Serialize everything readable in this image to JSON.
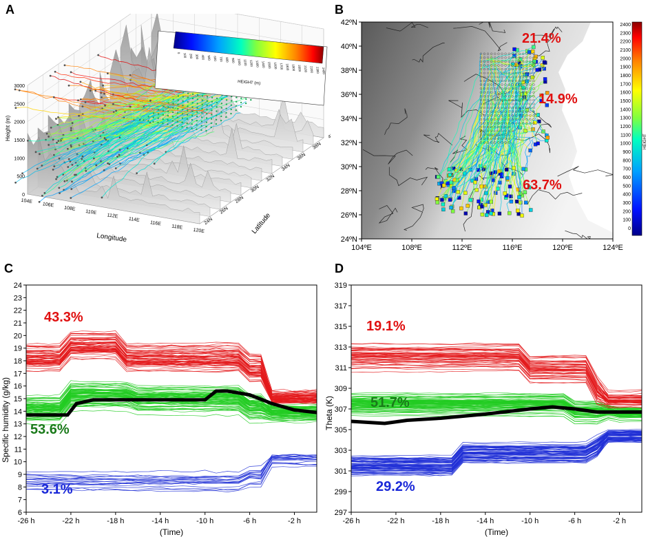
{
  "panels": {
    "a": "A",
    "b": "B",
    "c": "C",
    "d": "D"
  },
  "chart_data": [
    {
      "id": "A",
      "type": "3d-trajectory",
      "xlabel": "Longitude",
      "ylabel": "Latitude",
      "zlabel": "Height (m)",
      "x_ticks": [
        "104E",
        "106E",
        "108E",
        "110E",
        "112E",
        "114E",
        "116E",
        "118E",
        "120E"
      ],
      "y_ticks": [
        "24N",
        "26N",
        "28N",
        "30N",
        "32N",
        "34N",
        "36N",
        "38N",
        "40N"
      ],
      "z_ticks": [
        "0",
        "500",
        "1000",
        "1500",
        "2000",
        "2500",
        "3000"
      ],
      "colorbar_title": "HEIGHT (m)",
      "colorbar_ticks": [
        "0",
        "100",
        "200",
        "300",
        "400",
        "500",
        "600",
        "700",
        "800",
        "900",
        "1000",
        "1100",
        "1200",
        "1300",
        "1400",
        "1500",
        "1600",
        "1700",
        "1800",
        "1900",
        "2000",
        "2100",
        "2200",
        "2300",
        "2400"
      ]
    },
    {
      "id": "B",
      "type": "map-trajectory",
      "x_ticks": [
        "104ºE",
        "108ºE",
        "112ºE",
        "116ºE",
        "120ºE",
        "124ºE"
      ],
      "y_ticks": [
        "24ºN",
        "26ºN",
        "28ºN",
        "30ºN",
        "32ºN",
        "34ºN",
        "36ºN",
        "38ºN",
        "40ºN",
        "42ºN"
      ],
      "colorbar_title": "HEIGHT",
      "colorbar_ticks": [
        "0",
        "100",
        "200",
        "300",
        "400",
        "500",
        "600",
        "700",
        "800",
        "900",
        "1000",
        "1100",
        "1200",
        "1300",
        "1400",
        "1500",
        "1600",
        "1700",
        "1800",
        "1900",
        "2000",
        "2100",
        "2200",
        "2300",
        "2400"
      ],
      "annotations": [
        "21.4%",
        "14.9%",
        "63.7%"
      ]
    },
    {
      "id": "C",
      "type": "line",
      "ylabel": "Specific humidity (g/kg)",
      "xlabel": "(Time)",
      "x_ticks": [
        "-26 h",
        "-22 h",
        "-18 h",
        "-14 h",
        "-10 h",
        "-6 h",
        "-2 h"
      ],
      "x_tick_values": [
        -26,
        -22,
        -18,
        -14,
        -10,
        -6,
        -2
      ],
      "xlim": [
        -26,
        0
      ],
      "ylim": [
        6,
        24
      ],
      "y_ticks": [
        "6",
        "7",
        "8",
        "9",
        "10",
        "11",
        "12",
        "13",
        "14",
        "15",
        "16",
        "17",
        "18",
        "19",
        "20",
        "21",
        "22",
        "23",
        "24"
      ],
      "mean_line": {
        "x": [
          -26,
          -22.3,
          -21.5,
          -20,
          -10,
          -9,
          -8,
          -6,
          -4,
          -2,
          0
        ],
        "y": [
          13.7,
          13.7,
          14.6,
          14.9,
          14.9,
          15.6,
          15.6,
          15.3,
          14.6,
          14.1,
          13.9
        ]
      },
      "annotations": [
        "43.3%",
        "53.6%",
        "3.1%"
      ]
    },
    {
      "id": "D",
      "type": "line",
      "ylabel": "Theta (K)",
      "xlabel": "(Time)",
      "x_ticks": [
        "-26 h",
        "-22 h",
        "-18 h",
        "-14 h",
        "-10 h",
        "-6 h",
        "-2 h"
      ],
      "x_tick_values": [
        -26,
        -22,
        -18,
        -14,
        -10,
        -6,
        -2
      ],
      "xlim": [
        -26,
        0
      ],
      "ylim": [
        297,
        319
      ],
      "y_ticks": [
        "297",
        "299",
        "301",
        "303",
        "305",
        "307",
        "309",
        "311",
        "313",
        "315",
        "317",
        "319"
      ],
      "mean_line": {
        "x": [
          -26,
          -23,
          -21,
          -18,
          -14,
          -10,
          -8,
          -6,
          -4,
          -2,
          0
        ],
        "y": [
          305.8,
          305.6,
          305.9,
          306.1,
          306.5,
          307.0,
          307.2,
          307.0,
          306.7,
          306.7,
          306.7
        ]
      },
      "annotations": [
        "19.1%",
        "51.7%",
        "29.2%"
      ]
    }
  ],
  "colors": {
    "red": "#e31a1c",
    "green": "#22cc22",
    "blue": "#1f2fd6",
    "pct_red": "#e01010",
    "pct_green": "#1a7a1a",
    "pct_blue": "#1a28d8"
  }
}
